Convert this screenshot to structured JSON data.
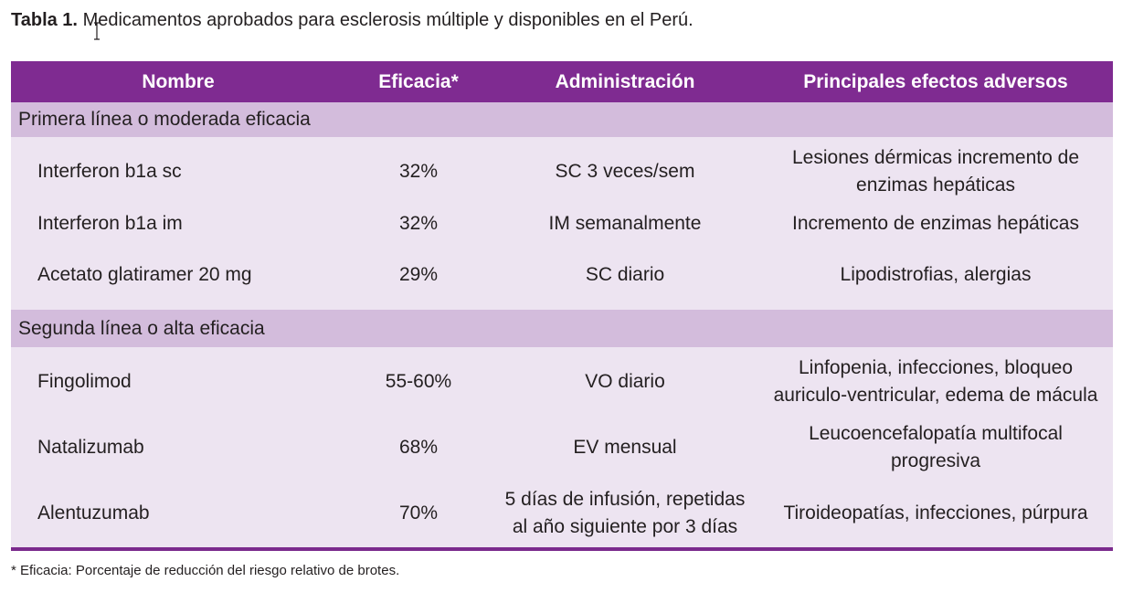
{
  "caption": {
    "label": "Tabla 1.",
    "text": "Medicamentos aprobados para esclerosis múltiple y disponibles en el Perú."
  },
  "table": {
    "headers": [
      "Nombre",
      "Eficacia*",
      "Administración",
      "Principales efectos adversos"
    ],
    "sections": [
      {
        "title": "Primera línea o moderada eficacia",
        "rows": [
          {
            "name": "Interferon b1a sc",
            "efficacy": "32%",
            "admin": [
              "SC 3 veces/sem"
            ],
            "effects": [
              "Lesiones dérmicas incremento de",
              "enzimas hepáticas"
            ]
          },
          {
            "name": "Interferon b1a im",
            "efficacy": "32%",
            "admin": [
              "IM semanalmente"
            ],
            "effects": [
              "Incremento de enzimas hepáticas"
            ]
          },
          {
            "name": "Acetato glatiramer 20 mg",
            "efficacy": "29%",
            "admin": [
              "SC diario"
            ],
            "effects": [
              "Lipodistrofias, alergias"
            ]
          }
        ]
      },
      {
        "title": "Segunda línea o alta eficacia",
        "rows": [
          {
            "name": "Fingolimod",
            "efficacy": "55-60%",
            "admin": [
              "VO diario"
            ],
            "effects": [
              "Linfopenia, infecciones, bloqueo",
              "auriculo-ventricular, edema de mácula"
            ]
          },
          {
            "name": "Natalizumab",
            "efficacy": "68%",
            "admin": [
              "EV mensual"
            ],
            "effects": [
              "Leucoencefalopatía multifocal",
              "progresiva"
            ]
          },
          {
            "name": "Alentuzumab",
            "efficacy": "70%",
            "admin": [
              "5 días de infusión, repetidas",
              "al año siguiente por 3 días"
            ],
            "effects": [
              "Tiroideopatías, infecciones, púrpura"
            ]
          }
        ]
      }
    ]
  },
  "footnote": "* Eficacia: Porcentaje de reducción del riesgo relativo de brotes.",
  "colors": {
    "header_bg": "#7f2b91",
    "section_bg": "#d3bcdc",
    "row_bg": "#ede4f1",
    "text": "#231f20"
  },
  "icons": {
    "cursor": "text-cursor-icon"
  }
}
